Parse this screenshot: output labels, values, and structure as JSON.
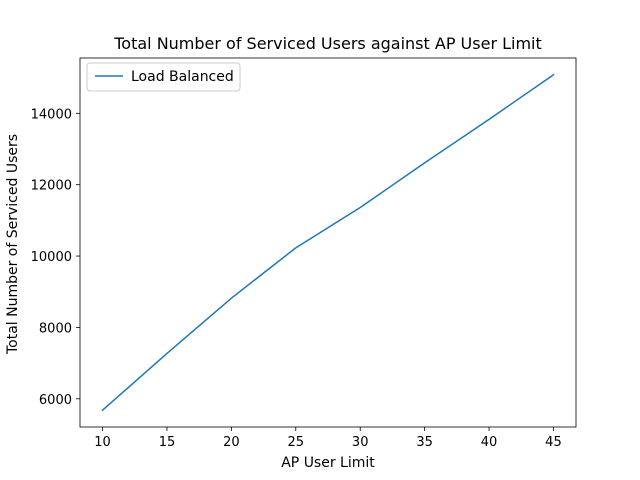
{
  "chart_data": {
    "type": "line",
    "title": "Total Number of Serviced Users against AP User Limit",
    "xlabel": "AP User Limit",
    "ylabel": "Total Number of Serviced Users",
    "x": [
      10,
      15,
      20,
      25,
      30,
      35,
      40,
      45
    ],
    "series": [
      {
        "name": "Load Balanced",
        "color": "#1f77b4",
        "values": [
          5680,
          7270,
          8820,
          10230,
          11360,
          12610,
          13830,
          15080
        ]
      }
    ],
    "xlim": [
      8.25,
      46.75
    ],
    "ylim": [
      5210,
      15550
    ],
    "xticks": [
      10,
      15,
      20,
      25,
      30,
      35,
      40,
      45
    ],
    "yticks": [
      6000,
      8000,
      10000,
      12000,
      14000
    ],
    "grid": false,
    "legend_position": "upper left"
  }
}
